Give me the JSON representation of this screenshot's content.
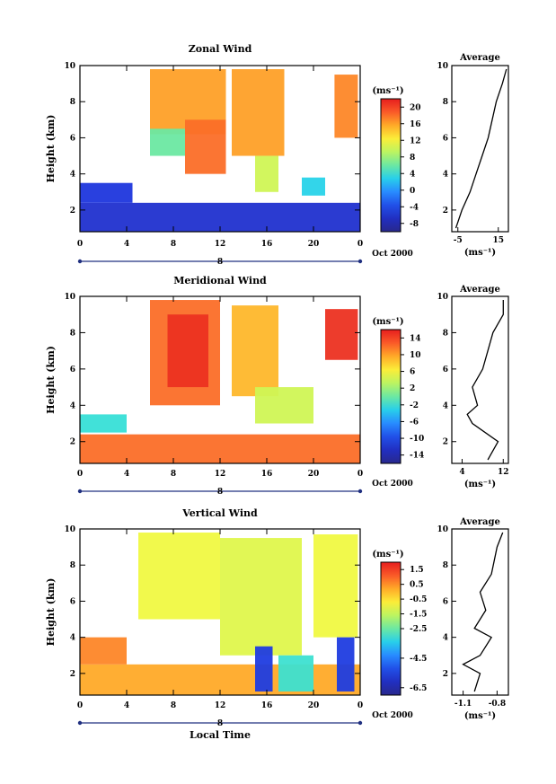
{
  "figure": {
    "xlabel": "Local Time",
    "date_label": "Oct 2000",
    "day_label": "8"
  },
  "chart_data": [
    {
      "type": "heatmap",
      "title": "Zonal Wind",
      "ylabel": "Height (km)",
      "xlim": [
        0,
        24
      ],
      "ylim": [
        0.8,
        10
      ],
      "xticks": [
        "0",
        "4",
        "8",
        "12",
        "16",
        "20",
        "0"
      ],
      "yticks": [
        "2",
        "4",
        "6",
        "8",
        "10"
      ],
      "colorbar": {
        "unit": "(ms⁻¹)",
        "ticks": [
          "-8",
          "-4",
          "0",
          "4",
          "8",
          "12",
          "16",
          "20"
        ],
        "range": [
          -10,
          22
        ]
      },
      "regions": [
        {
          "x": [
            6.0,
            12.5
          ],
          "y": [
            6.2,
            9.8
          ],
          "v": 16
        },
        {
          "x": [
            13.0,
            17.5
          ],
          "y": [
            5.0,
            9.8
          ],
          "v": 16
        },
        {
          "x": [
            21.8,
            23.8
          ],
          "y": [
            6.0,
            9.5
          ],
          "v": 17
        },
        {
          "x": [
            9.0,
            12.5
          ],
          "y": [
            4.0,
            7.0
          ],
          "v": 18
        },
        {
          "x": [
            6.0,
            9.0
          ],
          "y": [
            5.0,
            6.5
          ],
          "v": 6
        },
        {
          "x": [
            15.0,
            17.0
          ],
          "y": [
            3.0,
            5.0
          ],
          "v": 10
        },
        {
          "x": [
            19.0,
            21.0
          ],
          "y": [
            2.8,
            3.8
          ],
          "v": 3
        },
        {
          "x": [
            0.0,
            24.0
          ],
          "y": [
            0.8,
            2.4
          ],
          "v": -6
        },
        {
          "x": [
            0.0,
            4.5
          ],
          "y": [
            2.4,
            3.5
          ],
          "v": -5
        }
      ],
      "profile": {
        "xlim": [
          -8,
          20
        ],
        "xticks": [
          "-5",
          "15"
        ],
        "xlabel": "(ms⁻¹)",
        "title": "Average",
        "heights": [
          1.0,
          2.0,
          3.0,
          4.0,
          5.0,
          6.0,
          7.0,
          8.0,
          9.0,
          9.8
        ],
        "values": [
          -6,
          -3,
          1,
          4,
          7,
          10,
          12,
          14,
          17,
          19
        ]
      }
    },
    {
      "type": "heatmap",
      "title": "Meridional Wind",
      "ylabel": "Height (km)",
      "xlim": [
        0,
        24
      ],
      "ylim": [
        0.8,
        10
      ],
      "xticks": [
        "0",
        "4",
        "8",
        "12",
        "16",
        "20",
        "0"
      ],
      "yticks": [
        "2",
        "4",
        "6",
        "8",
        "10"
      ],
      "colorbar": {
        "unit": "(ms⁻¹)",
        "ticks": [
          "-14",
          "-10",
          "-6",
          "-2",
          "2",
          "6",
          "10",
          "14"
        ],
        "range": [
          -16,
          16
        ]
      },
      "regions": [
        {
          "x": [
            6.0,
            12.0
          ],
          "y": [
            4.0,
            9.8
          ],
          "v": 12
        },
        {
          "x": [
            7.5,
            11.0
          ],
          "y": [
            5.0,
            9.0
          ],
          "v": 15
        },
        {
          "x": [
            13.0,
            17.0
          ],
          "y": [
            4.5,
            9.5
          ],
          "v": 9
        },
        {
          "x": [
            21.0,
            23.8
          ],
          "y": [
            6.5,
            9.3
          ],
          "v": 15
        },
        {
          "x": [
            0.0,
            24.0
          ],
          "y": [
            0.8,
            2.4
          ],
          "v": 12
        },
        {
          "x": [
            0.0,
            4.0
          ],
          "y": [
            2.5,
            3.5
          ],
          "v": -2
        },
        {
          "x": [
            15.0,
            20.0
          ],
          "y": [
            3.0,
            5.0
          ],
          "v": 4
        }
      ],
      "profile": {
        "xlim": [
          2,
          13
        ],
        "xticks": [
          "4",
          "12"
        ],
        "xlabel": "(ms⁻¹)",
        "title": "Average",
        "heights": [
          1.0,
          2.0,
          3.0,
          3.5,
          4.0,
          5.0,
          6.0,
          7.0,
          8.0,
          9.0,
          9.8
        ],
        "values": [
          9,
          11,
          6,
          5,
          7,
          6,
          8,
          9,
          10,
          12,
          12
        ]
      }
    },
    {
      "type": "heatmap",
      "title": "Vertical Wind",
      "ylabel": "Height (km)",
      "xlim": [
        0,
        24
      ],
      "ylim": [
        0.8,
        10
      ],
      "xticks": [
        "0",
        "4",
        "8",
        "12",
        "16",
        "20",
        "0"
      ],
      "yticks": [
        "2",
        "4",
        "6",
        "8",
        "10"
      ],
      "colorbar": {
        "unit": "(ms⁻¹)",
        "ticks": [
          "-6.5",
          "-4.5",
          "-2.5",
          "-1.5",
          "-0.5",
          "0.5",
          "1.5"
        ],
        "range": [
          -7,
          2
        ]
      },
      "regions": [
        {
          "x": [
            5.0,
            12.0
          ],
          "y": [
            5.0,
            9.8
          ],
          "v": -1.0
        },
        {
          "x": [
            12.0,
            19.0
          ],
          "y": [
            3.0,
            9.5
          ],
          "v": -1.2
        },
        {
          "x": [
            20.0,
            23.8
          ],
          "y": [
            4.0,
            9.7
          ],
          "v": -1.0
        },
        {
          "x": [
            0.0,
            24.0
          ],
          "y": [
            0.8,
            2.5
          ],
          "v": 0.2
        },
        {
          "x": [
            0.0,
            4.0
          ],
          "y": [
            2.5,
            4.0
          ],
          "v": 0.6
        },
        {
          "x": [
            15.0,
            16.5
          ],
          "y": [
            1.0,
            3.5
          ],
          "v": -5.5
        },
        {
          "x": [
            22.0,
            23.5
          ],
          "y": [
            1.0,
            4.0
          ],
          "v": -5.5
        },
        {
          "x": [
            17.0,
            20.0
          ],
          "y": [
            1.0,
            3.0
          ],
          "v": -3.0
        }
      ],
      "profile": {
        "xlim": [
          -1.2,
          -0.7
        ],
        "xticks": [
          "-1.1",
          "-0.8"
        ],
        "xlabel": "(ms⁻¹)",
        "title": "Average",
        "heights": [
          1.0,
          2.0,
          2.5,
          3.0,
          4.0,
          4.5,
          5.5,
          6.5,
          7.5,
          9.0,
          9.8
        ],
        "values": [
          -1.0,
          -0.95,
          -1.1,
          -0.95,
          -0.85,
          -1.0,
          -0.9,
          -0.95,
          -0.85,
          -0.8,
          -0.75
        ]
      }
    }
  ]
}
